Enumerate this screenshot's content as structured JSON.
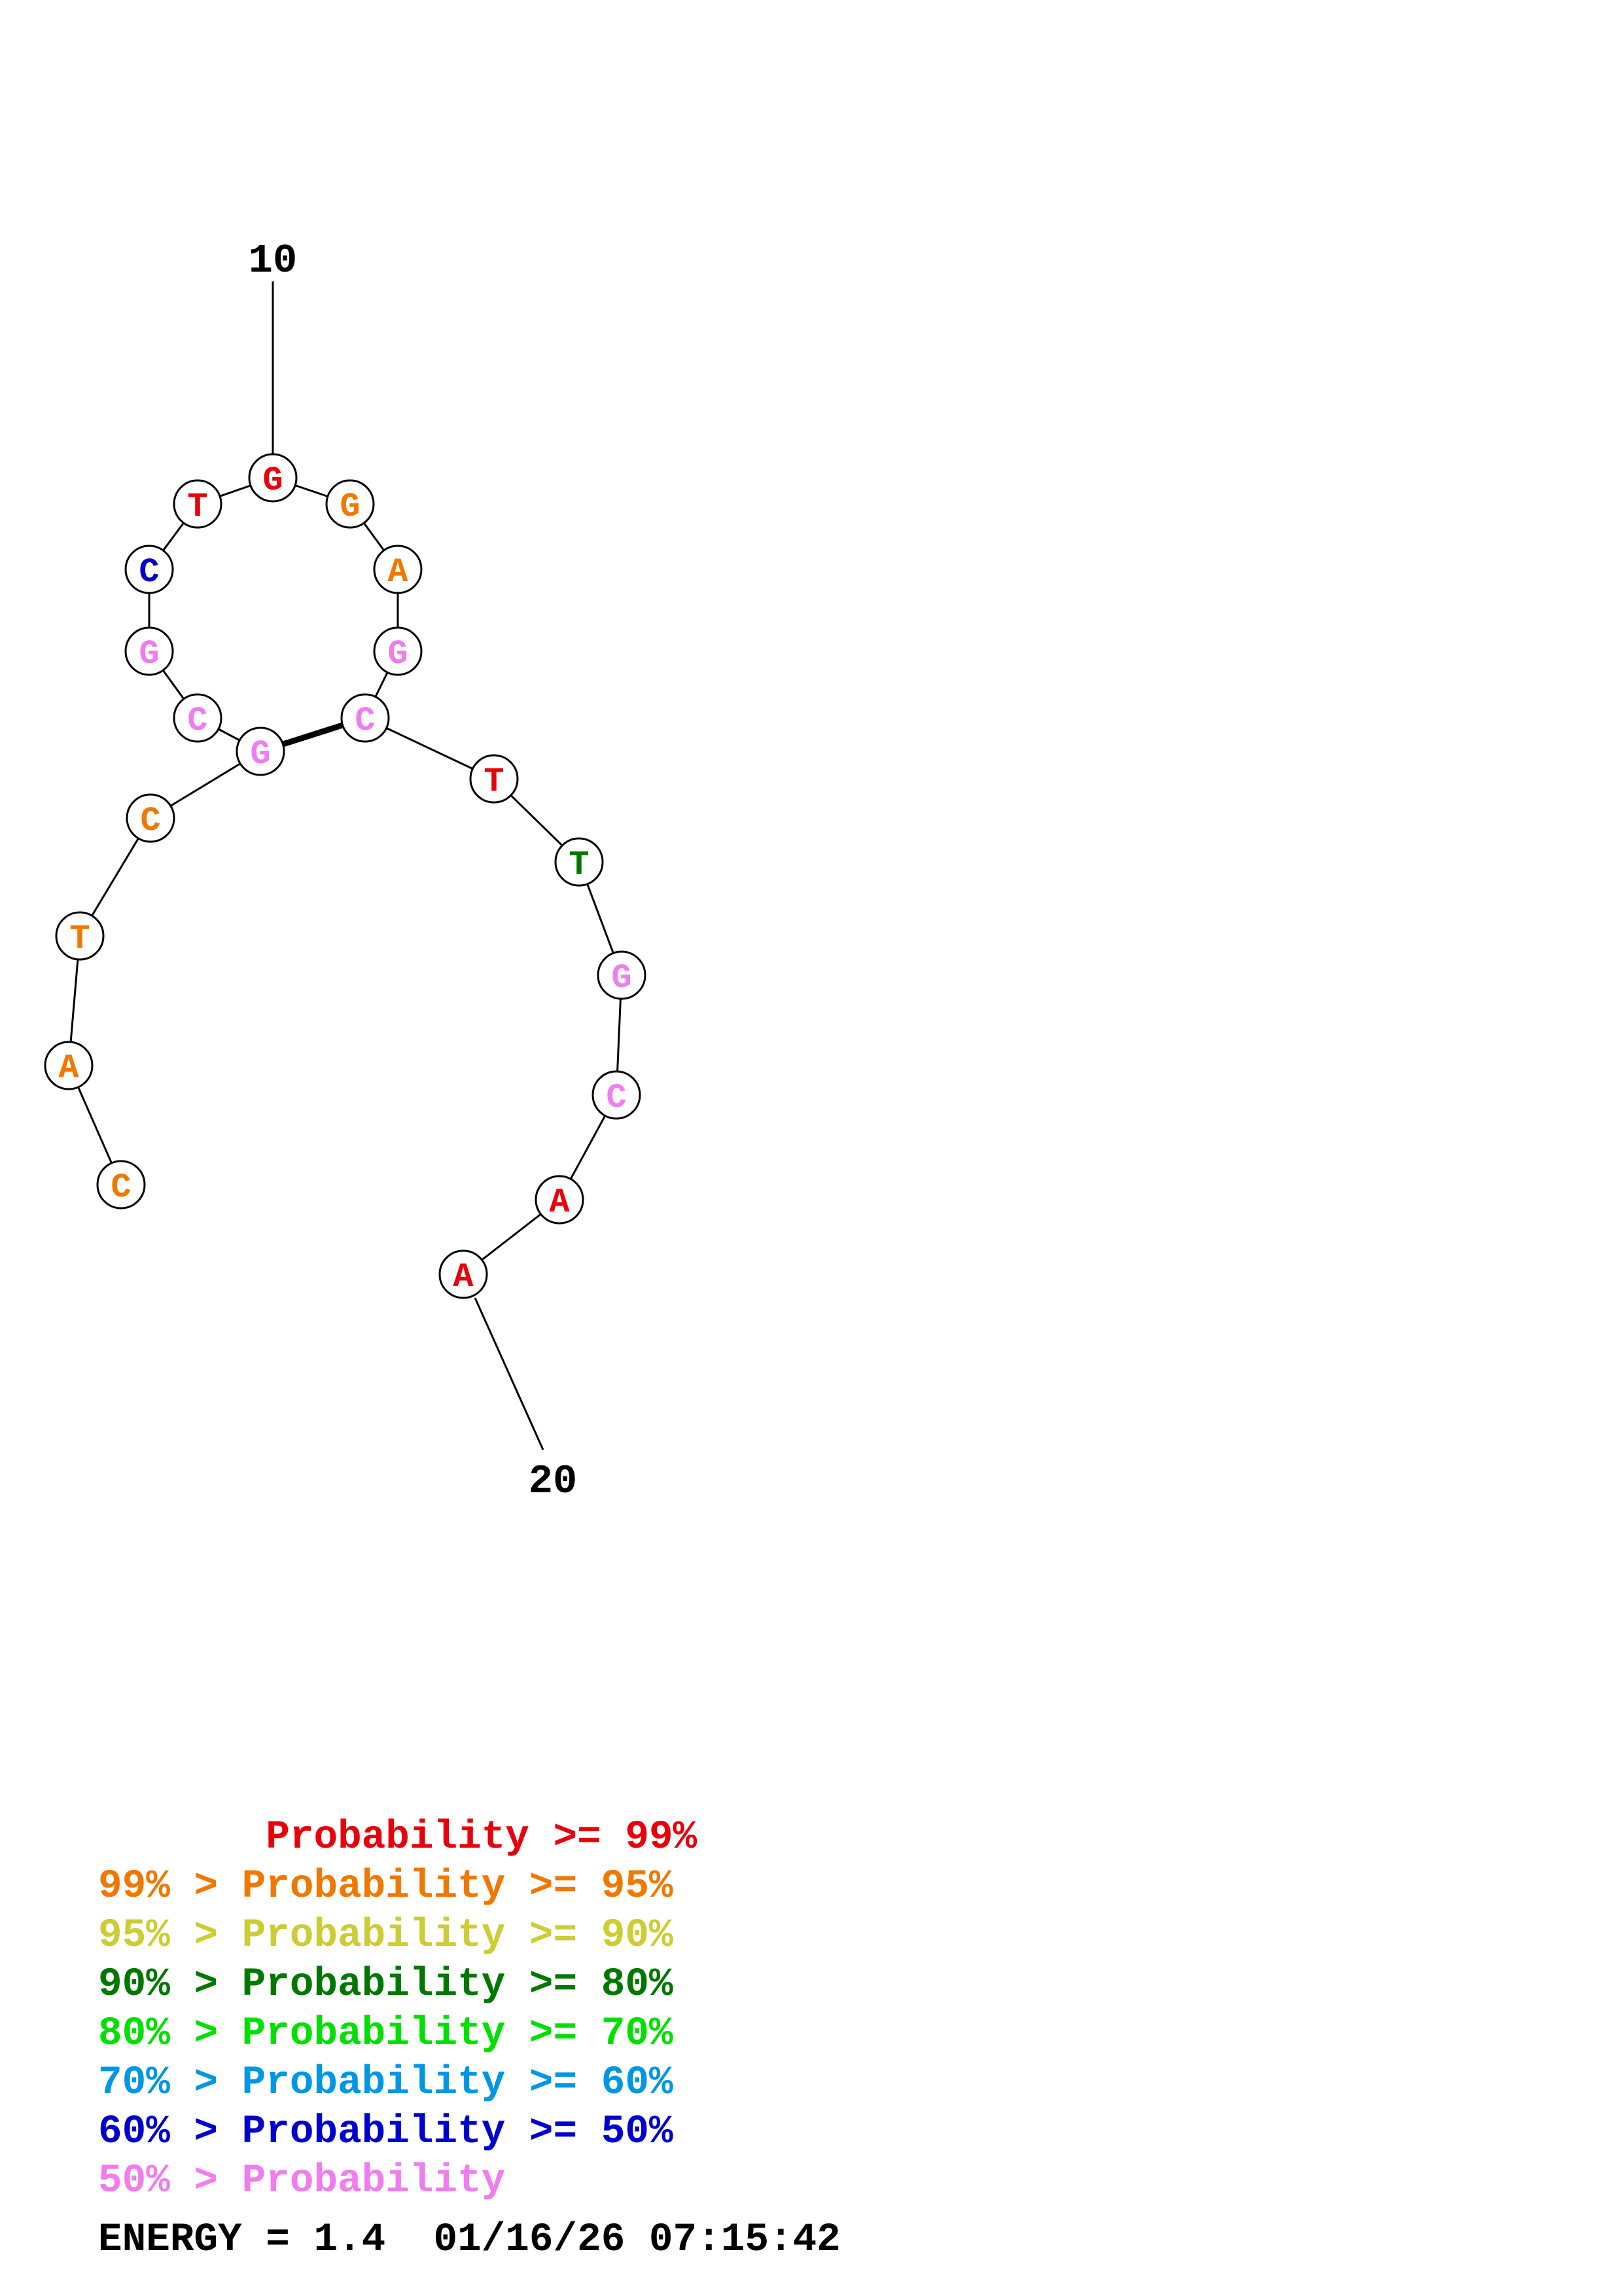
{
  "colors": {
    "p99": "#e8000b",
    "p95": "#f07800",
    "p90": "#cccc33",
    "p80": "#007800",
    "p70": "#00e000",
    "p60": "#0096e6",
    "p50": "#0000cc",
    "p0": "#f07cf0"
  },
  "structure": {
    "nucleotides": [
      {
        "base": "C",
        "prob": "p95"
      },
      {
        "base": "A",
        "prob": "p95"
      },
      {
        "base": "T",
        "prob": "p95"
      },
      {
        "base": "C",
        "prob": "p95"
      },
      {
        "base": "G",
        "prob": "p0"
      },
      {
        "base": "C",
        "prob": "p0"
      },
      {
        "base": "G",
        "prob": "p0"
      },
      {
        "base": "C",
        "prob": "p50"
      },
      {
        "base": "T",
        "prob": "p99"
      },
      {
        "base": "G",
        "prob": "p99"
      },
      {
        "base": "G",
        "prob": "p95"
      },
      {
        "base": "A",
        "prob": "p95"
      },
      {
        "base": "G",
        "prob": "p0"
      },
      {
        "base": "C",
        "prob": "p0"
      },
      {
        "base": "T",
        "prob": "p99"
      },
      {
        "base": "T",
        "prob": "p80"
      },
      {
        "base": "G",
        "prob": "p0"
      },
      {
        "base": "C",
        "prob": "p0"
      },
      {
        "base": "A",
        "prob": "p99"
      },
      {
        "base": "A",
        "prob": "p99"
      }
    ],
    "pairs": [
      [
        5,
        14
      ]
    ],
    "ticks": [
      {
        "position": 10,
        "label": "10"
      },
      {
        "position": 20,
        "label": "20"
      }
    ]
  },
  "legend": [
    {
      "prefix": "       ",
      "text": "Probability >= 99%",
      "color_key": "p99"
    },
    {
      "prefix": "99% > ",
      "text": "Probability >= 95%",
      "color_key": "p95"
    },
    {
      "prefix": "95% > ",
      "text": "Probability >= 90%",
      "color_key": "p90"
    },
    {
      "prefix": "90% > ",
      "text": "Probability >= 80%",
      "color_key": "p80"
    },
    {
      "prefix": "80% > ",
      "text": "Probability >= 70%",
      "color_key": "p70"
    },
    {
      "prefix": "70% > ",
      "text": "Probability >= 60%",
      "color_key": "p60"
    },
    {
      "prefix": "60% > ",
      "text": "Probability >= 50%",
      "color_key": "p50"
    },
    {
      "prefix": "50% > ",
      "text": "Probability",
      "color_key": "p0"
    }
  ],
  "footer": {
    "energy_text": "ENERGY = 1.4  01/16/26 07:15:42"
  }
}
